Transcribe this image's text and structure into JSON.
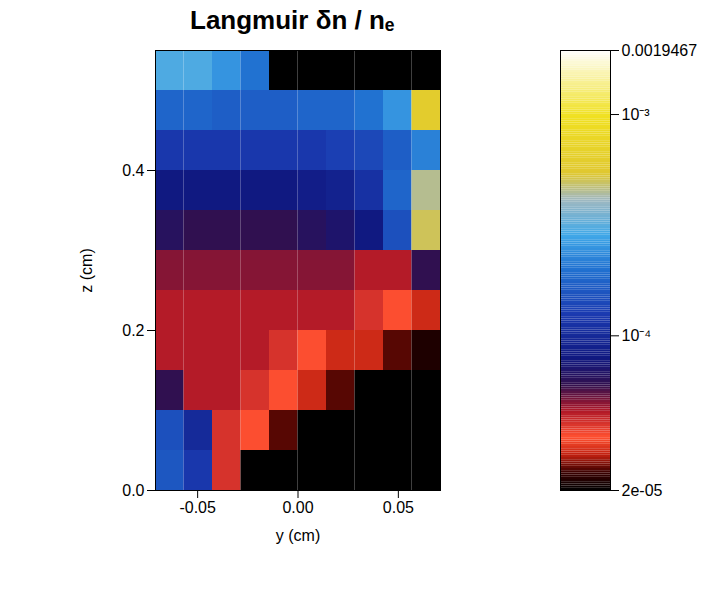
{
  "chart_data": {
    "type": "heatmap",
    "title": "Langmuir δn / nₑ",
    "x_label": "y (cm)",
    "y_label": "z (cm)",
    "xlim": [
      -0.071,
      0.071
    ],
    "ylim": [
      0,
      0.55
    ],
    "xticks": [
      {
        "value": -0.05,
        "label": "-0.05"
      },
      {
        "value": 0,
        "label": "0.00"
      },
      {
        "value": 0.05,
        "label": "0.05"
      }
    ],
    "yticks": [
      {
        "value": 0,
        "label": "0.0"
      },
      {
        "value": 0.2,
        "label": "0.2"
      },
      {
        "value": 0.4,
        "label": "0.4"
      }
    ],
    "x_edges": [
      -0.071,
      -0.0568,
      -0.0426,
      -0.0284,
      -0.0142,
      0,
      0.0142,
      0.0284,
      0.0426,
      0.0568,
      0.071
    ],
    "y_edges": [
      0,
      0.05,
      0.1,
      0.15,
      0.2,
      0.25,
      0.3,
      0.35,
      0.4,
      0.45,
      0.5,
      0.55
    ],
    "values": [
      [
        0.00016,
        0.00012,
        4e-05,
        2e-05,
        2e-05,
        2e-05,
        2e-05,
        2e-05,
        2e-05,
        2e-05
      ],
      [
        0.00015,
        0.0001,
        4e-05,
        3.5e-05,
        2.5e-05,
        2e-05,
        2e-05,
        2e-05,
        2e-05,
        2e-05
      ],
      [
        6e-05,
        4.5e-05,
        4.5e-05,
        4e-05,
        3.5e-05,
        3e-05,
        2.5e-05,
        2e-05,
        2e-05,
        2e-05
      ],
      [
        4.5e-05,
        4.5e-05,
        4.5e-05,
        4.5e-05,
        4e-05,
        3.5e-05,
        3e-05,
        3e-05,
        2.5e-05,
        2.2e-05
      ],
      [
        4.5e-05,
        4.5e-05,
        4.5e-05,
        4.5e-05,
        4.5e-05,
        4.5e-05,
        4.5e-05,
        4e-05,
        3.5e-05,
        3e-05
      ],
      [
        5e-05,
        5e-05,
        5e-05,
        5e-05,
        5e-05,
        5e-05,
        5e-05,
        4.5e-05,
        4.5e-05,
        6e-05
      ],
      [
        6.5e-05,
        6e-05,
        6e-05,
        6e-05,
        6e-05,
        6.5e-05,
        7e-05,
        8e-05,
        0.00015,
        0.0005
      ],
      [
        8e-05,
        8e-05,
        8e-05,
        8e-05,
        8e-05,
        8.5e-05,
        9e-05,
        0.00011,
        0.00018,
        0.00045
      ],
      [
        0.00012,
        0.00012,
        0.00012,
        0.00012,
        0.00012,
        0.00012,
        0.00013,
        0.00014,
        0.00017,
        0.00022
      ],
      [
        0.00018,
        0.00018,
        0.00017,
        0.00017,
        0.00017,
        0.00018,
        0.00018,
        0.0002,
        0.00025,
        0.0006
      ],
      [
        0.0003,
        0.0003,
        0.00025,
        0.0002,
        2e-05,
        2e-05,
        2e-05,
        2e-05,
        2e-05,
        2e-05
      ]
    ],
    "log": true,
    "color_range": [
      2e-05,
      0.0019467
    ],
    "color_ticks": [
      {
        "value": 2e-05,
        "label": "2e-05"
      },
      {
        "value": 0.0001,
        "label": "10⁻⁴"
      },
      {
        "value": 0.001,
        "label": "10⁻³"
      },
      {
        "value": 0.0019467,
        "label": "0.0019467"
      }
    ]
  }
}
